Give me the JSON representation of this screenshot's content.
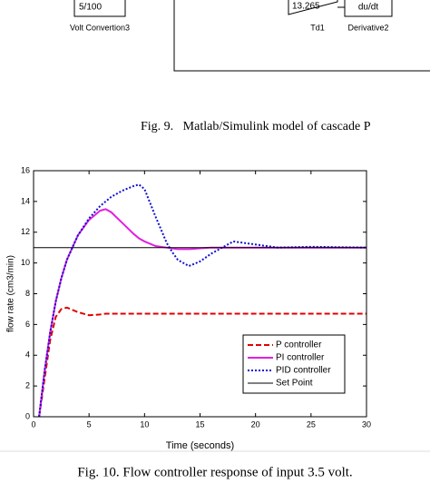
{
  "diagram": {
    "blocks": [
      {
        "label": "5/100",
        "caption": "Volt Convertion3"
      },
      {
        "label": "13.265",
        "caption": "Td1"
      },
      {
        "label": "du/dt",
        "caption": "Derivative2"
      }
    ]
  },
  "fig9_caption": "Fig. 9.   Matlab/Simulink model of cascade P",
  "fig10_caption": "Fig. 10. Flow controller response of input 3.5 volt.",
  "chart_data": {
    "type": "line",
    "xlabel": "Time (seconds)",
    "ylabel": "flow rate (cm3/min)",
    "x": [
      0,
      0.5,
      1,
      1.5,
      2,
      2.5,
      3,
      4,
      5,
      6,
      6.5,
      7,
      8,
      9,
      9.5,
      10,
      11,
      12,
      12.5,
      13,
      14,
      15,
      16,
      18,
      20,
      22,
      25,
      30
    ],
    "series": [
      {
        "name": "P controller",
        "color": "#e00000",
        "style": "dashed",
        "values": [
          null,
          0,
          2.5,
          5,
          6.5,
          7,
          7.1,
          6.8,
          6.6,
          6.65,
          6.7,
          6.7,
          6.7,
          6.7,
          6.7,
          6.7,
          6.7,
          6.7,
          6.7,
          6.7,
          6.7,
          6.7,
          6.7,
          6.7,
          6.7,
          6.7,
          6.7,
          6.7
        ]
      },
      {
        "name": "PI controller",
        "color": "#e020e0",
        "style": "solid",
        "values": [
          null,
          0,
          3,
          5.5,
          7.5,
          9,
          10.2,
          11.8,
          12.8,
          13.4,
          13.5,
          13.3,
          12.6,
          11.9,
          11.6,
          11.4,
          11.1,
          11.0,
          10.95,
          10.9,
          10.9,
          10.95,
          11,
          11,
          11,
          11,
          11,
          11
        ]
      },
      {
        "name": "PID controller",
        "color": "#1010d0",
        "style": "dotted",
        "values": [
          null,
          0,
          3,
          5.5,
          7.5,
          9,
          10.2,
          11.8,
          12.9,
          13.7,
          14,
          14.3,
          14.7,
          15,
          15.1,
          14.8,
          13,
          11.3,
          10.7,
          10.2,
          9.8,
          10.1,
          10.6,
          11.4,
          11.2,
          11.0,
          11.05,
          11
        ]
      },
      {
        "name": "Set Point",
        "color": "#000000",
        "style": "solid",
        "values": [
          11,
          11,
          11,
          11,
          11,
          11,
          11,
          11,
          11,
          11,
          11,
          11,
          11,
          11,
          11,
          11,
          11,
          11,
          11,
          11,
          11,
          11,
          11,
          11,
          11,
          11,
          11,
          11
        ]
      }
    ],
    "xlim": [
      0,
      30
    ],
    "xticks": [
      0,
      5,
      10,
      15,
      20,
      25,
      30
    ],
    "ylim": [
      0,
      16
    ],
    "yticks": [
      0,
      2,
      4,
      6,
      8,
      10,
      12,
      14,
      16
    ],
    "grid": false,
    "legend": "lower right"
  }
}
